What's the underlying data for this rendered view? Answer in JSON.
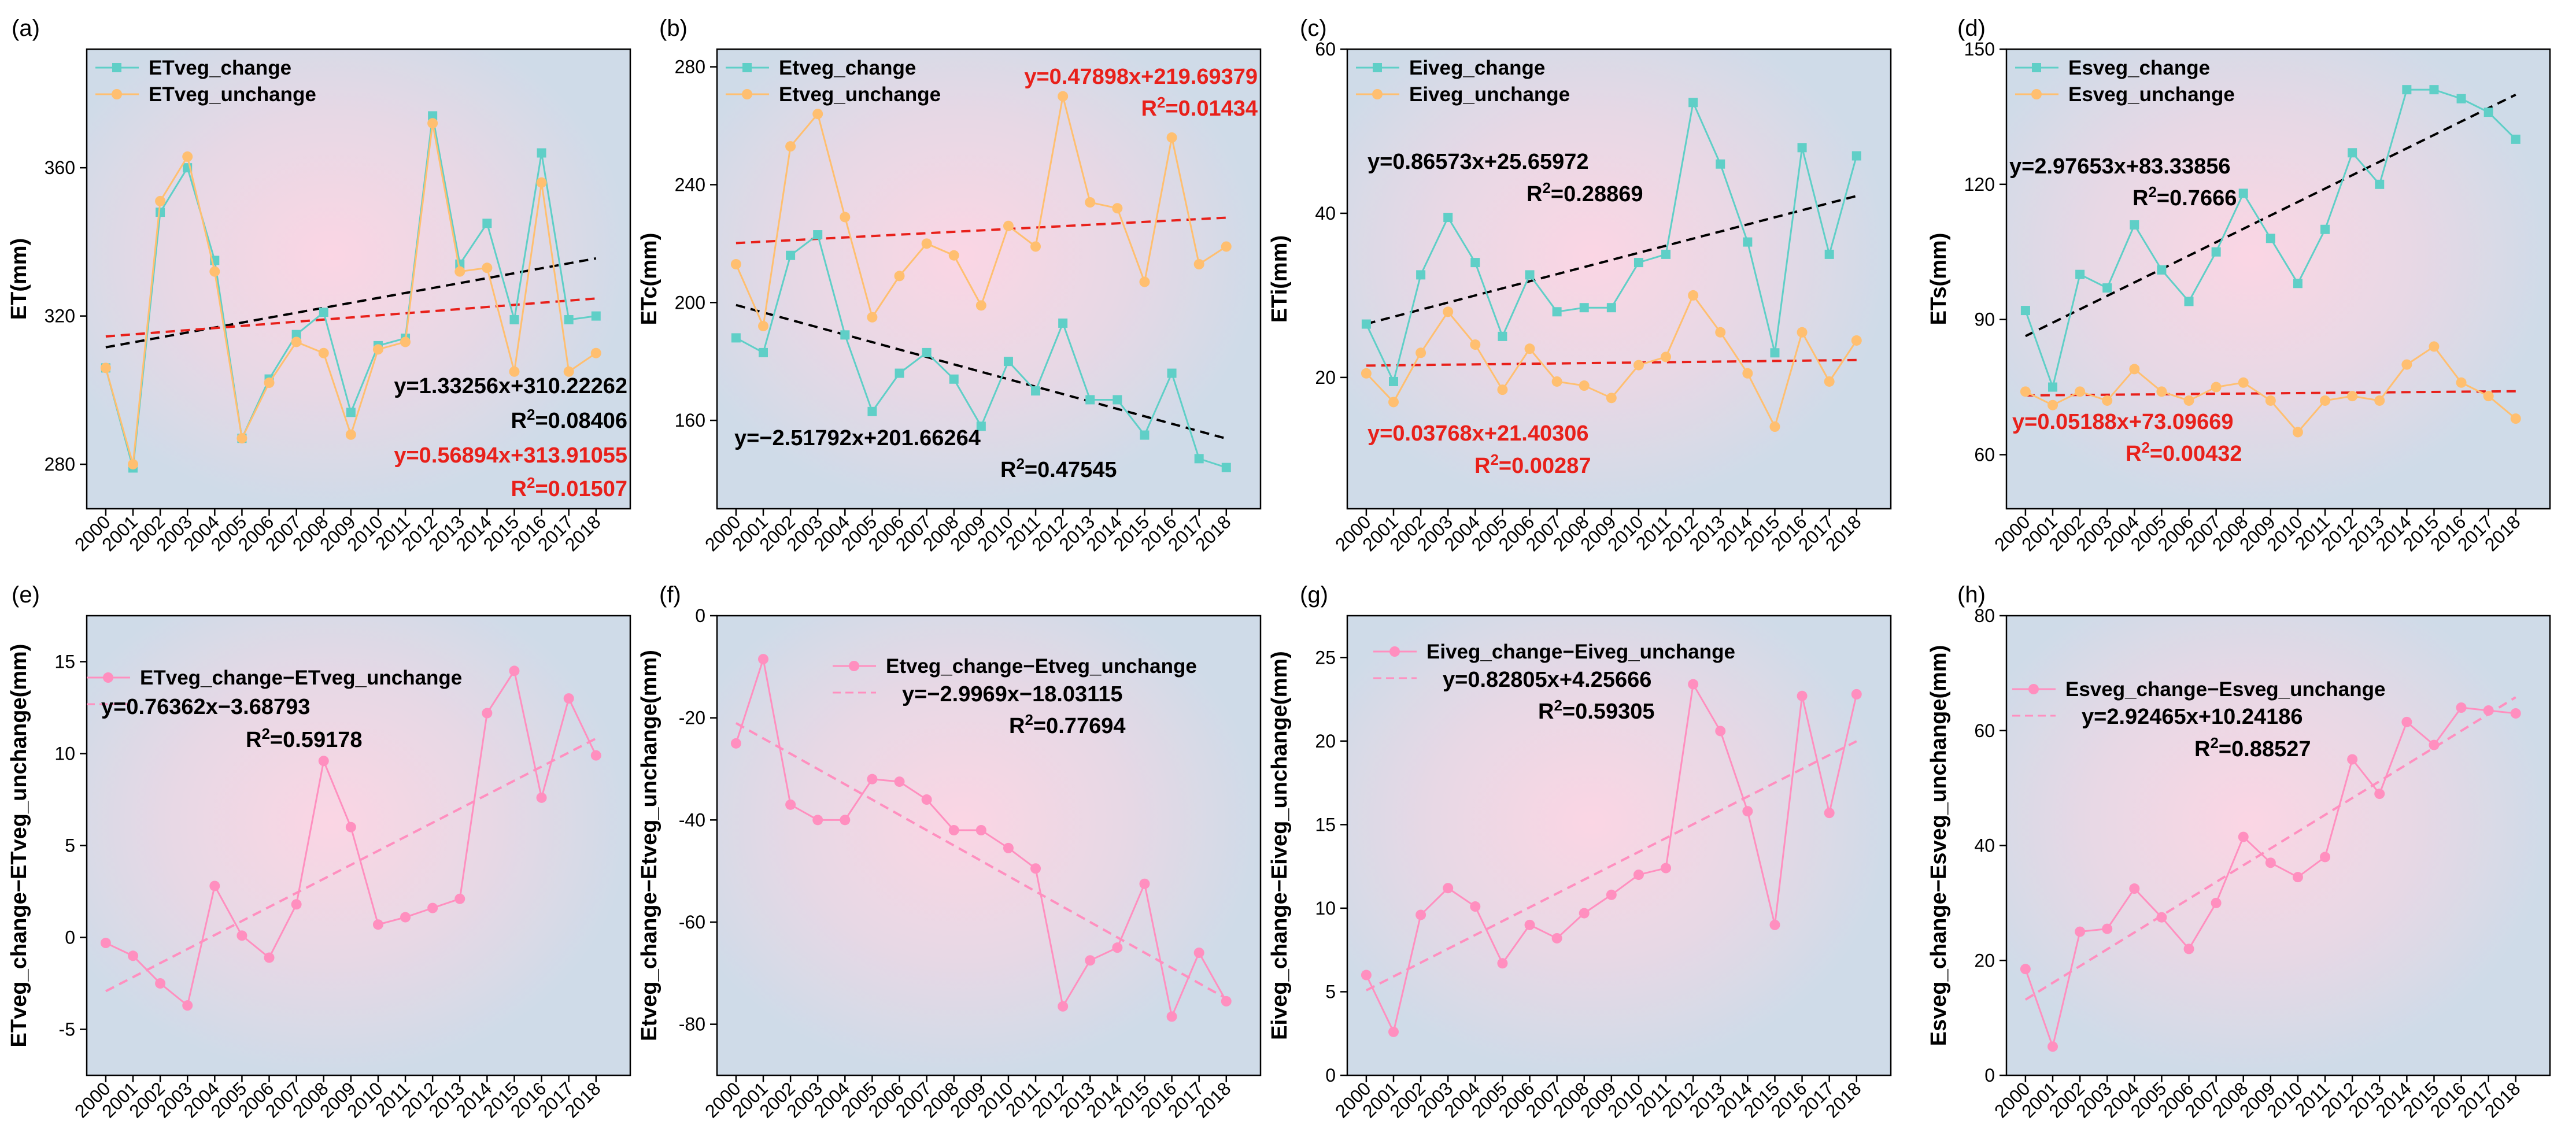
{
  "colors": {
    "change": "#5fcfc7",
    "unchange": "#ffbf70",
    "diff": "#ff8fbf",
    "trend_black": "#000000",
    "trend_red": "#e8201a",
    "bg_outer": "#cfdbe8",
    "bg_inner": "#fbd6e4"
  },
  "chart_data": [
    {
      "type": "line",
      "panel": "(a)",
      "ylabel": "ET(mm)",
      "ylim": [
        268,
        392
      ],
      "yticks": [
        280,
        320,
        360
      ],
      "x": [
        2000,
        2001,
        2002,
        2003,
        2004,
        2005,
        2006,
        2007,
        2008,
        2009,
        2010,
        2011,
        2012,
        2013,
        2014,
        2015,
        2016,
        2017,
        2018
      ],
      "series": [
        {
          "name": "ETveg_change",
          "color_key": "change",
          "marker": "square",
          "values": [
            306,
            279,
            348,
            360,
            335,
            287,
            303,
            315,
            321,
            294,
            312,
            314,
            374,
            334,
            345,
            319,
            364,
            319,
            320
          ]
        },
        {
          "name": "ETveg_unchange",
          "color_key": "unchange",
          "marker": "circle",
          "values": [
            306,
            280,
            351,
            363,
            332,
            287,
            302,
            313,
            310,
            288,
            311,
            313,
            372,
            332,
            333,
            305,
            356,
            305,
            310
          ]
        }
      ],
      "trends": [
        {
          "label": "y=1.33256x+310.22262",
          "r2_value": "=0.08406",
          "slope": 1.33256,
          "intercept": 310.22262,
          "color_key": "trend_black"
        },
        {
          "label": "y=0.56894x+313.91055",
          "r2_value": "=0.01507",
          "slope": 0.56894,
          "intercept": 313.91055,
          "color_key": "trend_red"
        }
      ]
    },
    {
      "type": "line",
      "panel": "(b)",
      "ylabel": "ETc(mm)",
      "ylim": [
        130,
        286
      ],
      "yticks": [
        160,
        200,
        240,
        280
      ],
      "x": [
        2000,
        2001,
        2002,
        2003,
        2004,
        2005,
        2006,
        2007,
        2008,
        2009,
        2010,
        2011,
        2012,
        2013,
        2014,
        2015,
        2016,
        2017,
        2018
      ],
      "series": [
        {
          "name": "Etveg_change",
          "color_key": "change",
          "marker": "square",
          "values": [
            188,
            183,
            216,
            223,
            189,
            163,
            176,
            183,
            174,
            158,
            180,
            170,
            193,
            167,
            167,
            155,
            176,
            147,
            144
          ]
        },
        {
          "name": "Etveg_unchange",
          "color_key": "unchange",
          "marker": "circle",
          "values": [
            213,
            192,
            253,
            264,
            229,
            195,
            209,
            220,
            216,
            199,
            226,
            219,
            270,
            234,
            232,
            207,
            256,
            213,
            219
          ]
        }
      ],
      "trends": [
        {
          "label": "y=0.47898x+219.69379",
          "r2_value": "=0.01434",
          "slope": 0.47898,
          "intercept": 219.69379,
          "color_key": "trend_red"
        },
        {
          "label": "y=−2.51792x+201.66264",
          "r2_value": "=0.47545",
          "slope": -2.51792,
          "intercept": 201.66264,
          "color_key": "trend_black"
        }
      ]
    },
    {
      "type": "line",
      "panel": "(c)",
      "ylabel": "ETi(mm)",
      "ylim": [
        4,
        60
      ],
      "yticks": [
        20,
        40,
        60
      ],
      "x": [
        2000,
        2001,
        2002,
        2003,
        2004,
        2005,
        2006,
        2007,
        2008,
        2009,
        2010,
        2011,
        2012,
        2013,
        2014,
        2015,
        2016,
        2017,
        2018
      ],
      "series": [
        {
          "name": "Eiveg_change",
          "color_key": "change",
          "marker": "square",
          "values": [
            26.5,
            19.5,
            32.5,
            39.5,
            34,
            25,
            32.5,
            28,
            28.5,
            28.5,
            34,
            35,
            53.5,
            46,
            36.5,
            23,
            48,
            35,
            47
          ]
        },
        {
          "name": "Eiveg_unchange",
          "color_key": "unchange",
          "marker": "circle",
          "values": [
            20.5,
            17,
            23,
            28,
            24,
            18.5,
            23.5,
            19.5,
            19,
            17.5,
            21.5,
            22.5,
            30,
            25.5,
            20.5,
            14,
            25.5,
            19.5,
            24.5
          ]
        }
      ],
      "trends": [
        {
          "label": "y=0.86573x+25.65972",
          "r2_value": "=0.28869",
          "slope": 0.86573,
          "intercept": 25.65972,
          "color_key": "trend_black"
        },
        {
          "label": "y=0.03768x+21.40306",
          "r2_value": "=0.00287",
          "slope": 0.03768,
          "intercept": 21.40306,
          "color_key": "trend_red"
        }
      ]
    },
    {
      "type": "line",
      "panel": "(d)",
      "ylabel": "ETs(mm)",
      "ylim": [
        48,
        150
      ],
      "yticks": [
        60,
        90,
        120,
        150
      ],
      "x": [
        2000,
        2001,
        2002,
        2003,
        2004,
        2005,
        2006,
        2007,
        2008,
        2009,
        2010,
        2011,
        2012,
        2013,
        2014,
        2015,
        2016,
        2017,
        2018
      ],
      "series": [
        {
          "name": "Esveg_change",
          "color_key": "change",
          "marker": "square",
          "values": [
            92,
            75,
            100,
            97,
            111,
            101,
            94,
            105,
            118,
            108,
            98,
            110,
            127,
            120,
            141,
            141,
            139,
            136,
            130
          ]
        },
        {
          "name": "Esveg_unchange",
          "color_key": "unchange",
          "marker": "circle",
          "values": [
            74,
            71,
            74,
            72,
            79,
            74,
            72,
            75,
            76,
            72,
            65,
            72,
            73,
            72,
            80,
            84,
            76,
            73,
            68
          ]
        }
      ],
      "trends": [
        {
          "label": "y=2.97653x+83.33856",
          "r2_value": "=0.7666",
          "slope": 2.97653,
          "intercept": 83.33856,
          "color_key": "trend_black"
        },
        {
          "label": "y=0.05188x+73.09669",
          "r2_value": "=0.00432",
          "slope": 0.05188,
          "intercept": 73.09669,
          "color_key": "trend_red"
        }
      ]
    },
    {
      "type": "line",
      "panel": "(e)",
      "ylabel": "ETveg_change−ETveg_unchange(mm)",
      "ylim": [
        -7.5,
        17.5
      ],
      "yticks": [
        -5,
        0,
        5,
        10,
        15
      ],
      "x": [
        2000,
        2001,
        2002,
        2003,
        2004,
        2005,
        2006,
        2007,
        2008,
        2009,
        2010,
        2011,
        2012,
        2013,
        2014,
        2015,
        2016,
        2017,
        2018
      ],
      "series": [
        {
          "name": "ETveg_change−ETveg_unchange",
          "color_key": "diff",
          "marker": "circle",
          "values": [
            -0.3,
            -1,
            -2.5,
            -3.7,
            2.8,
            0.1,
            -1.1,
            1.8,
            9.6,
            6,
            0.7,
            1.1,
            1.6,
            2.1,
            12.2,
            14.5,
            7.6,
            13,
            9.9
          ]
        }
      ],
      "trends": [
        {
          "label": "y=0.76362x−3.68793",
          "r2_value": "=0.59178",
          "slope": 0.76362,
          "intercept": -3.68793,
          "color_key": "diff"
        }
      ]
    },
    {
      "type": "line",
      "panel": "(f)",
      "ylabel": "Etveg_change−Etveg_unchange(mm)",
      "ylim": [
        -90,
        0
      ],
      "yticks": [
        -80,
        -60,
        -40,
        -20,
        0
      ],
      "x": [
        2000,
        2001,
        2002,
        2003,
        2004,
        2005,
        2006,
        2007,
        2008,
        2009,
        2010,
        2011,
        2012,
        2013,
        2014,
        2015,
        2016,
        2017,
        2018
      ],
      "series": [
        {
          "name": "Etveg_change−Etveg_unchange",
          "color_key": "diff",
          "marker": "circle",
          "values": [
            -25,
            -8.5,
            -37,
            -40,
            -40,
            -32,
            -32.5,
            -36,
            -42,
            -42,
            -45.5,
            -49.5,
            -76.5,
            -67.5,
            -65,
            -52.5,
            -78.5,
            -66,
            -75.5
          ]
        }
      ],
      "trends": [
        {
          "label": "y=−2.9969x−18.03115",
          "r2_value": "=0.77694",
          "slope": -2.9969,
          "intercept": -18.03115,
          "color_key": "diff"
        }
      ]
    },
    {
      "type": "line",
      "panel": "(g)",
      "ylabel": "Eiveg_change−Eiveg_unchange(mm)",
      "ylim": [
        0,
        27.5
      ],
      "yticks": [
        0,
        5,
        10,
        15,
        20,
        25
      ],
      "x": [
        2000,
        2001,
        2002,
        2003,
        2004,
        2005,
        2006,
        2007,
        2008,
        2009,
        2010,
        2011,
        2012,
        2013,
        2014,
        2015,
        2016,
        2017,
        2018
      ],
      "series": [
        {
          "name": "Eiveg_change−Eiveg_unchange",
          "color_key": "diff",
          "marker": "circle",
          "values": [
            6,
            2.6,
            9.6,
            11.2,
            10.1,
            6.7,
            9,
            8.2,
            9.7,
            10.8,
            12,
            12.4,
            23.4,
            20.6,
            15.8,
            9,
            22.7,
            15.7,
            22.8
          ]
        }
      ],
      "trends": [
        {
          "label": "y=0.82805x+4.25666",
          "r2_value": "=0.59305",
          "slope": 0.82805,
          "intercept": 4.25666,
          "color_key": "diff"
        }
      ]
    },
    {
      "type": "line",
      "panel": "(h)",
      "ylabel": "Esveg_change−Esveg_unchange(mm)",
      "ylim": [
        0,
        80
      ],
      "yticks": [
        0,
        20,
        40,
        60,
        80
      ],
      "x": [
        2000,
        2001,
        2002,
        2003,
        2004,
        2005,
        2006,
        2007,
        2008,
        2009,
        2010,
        2011,
        2012,
        2013,
        2014,
        2015,
        2016,
        2017,
        2018
      ],
      "series": [
        {
          "name": "Esveg_change−Esveg_unchange",
          "color_key": "diff",
          "marker": "circle",
          "values": [
            18.5,
            5,
            25,
            25.5,
            32.5,
            27.5,
            22,
            30,
            41.5,
            37,
            34.5,
            38,
            55,
            49,
            61.5,
            57.5,
            64,
            63.5,
            63
          ]
        }
      ],
      "trends": [
        {
          "label": "y=2.92465x+10.24186",
          "r2_value": "=0.88527",
          "slope": 2.92465,
          "intercept": 10.24186,
          "color_key": "diff"
        }
      ]
    }
  ]
}
